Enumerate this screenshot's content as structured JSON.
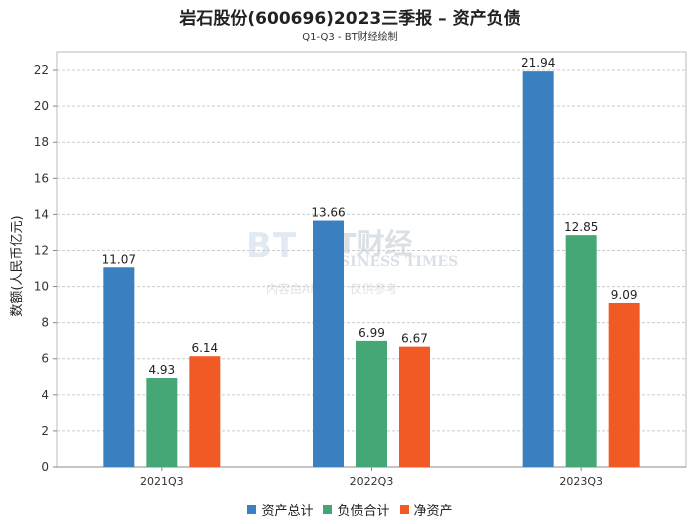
{
  "title": "岩石股份(600696)2023三季报 – 资产负债",
  "subtitle": "Q1-Q3 - BT财经绘制",
  "watermark": {
    "logo": "BT",
    "brand_cn": "BT财经",
    "brand_en": "BUSINESS TIMES",
    "note": "内容由AI生成，仅供参考"
  },
  "chart_data": {
    "type": "bar",
    "title": "岩石股份(600696)2023三季报 – 资产负债",
    "subtitle": "Q1-Q3 - BT财经绘制",
    "xlabel": "",
    "ylabel": "数额(人民币亿元)",
    "categories": [
      "2021Q3",
      "2022Q3",
      "2023Q3"
    ],
    "ylim": [
      0,
      23
    ],
    "yticks": [
      0,
      2,
      4,
      6,
      8,
      10,
      12,
      14,
      16,
      18,
      20,
      22
    ],
    "grid": true,
    "legend_position": "bottom",
    "series": [
      {
        "name": "资产总计",
        "color": "#3a7fc0",
        "values": [
          11.07,
          13.66,
          21.94
        ]
      },
      {
        "name": "负债合计",
        "color": "#45a776",
        "values": [
          4.93,
          6.99,
          12.85
        ]
      },
      {
        "name": "净资产",
        "color": "#f15a24",
        "values": [
          6.14,
          6.67,
          9.09
        ]
      }
    ]
  }
}
